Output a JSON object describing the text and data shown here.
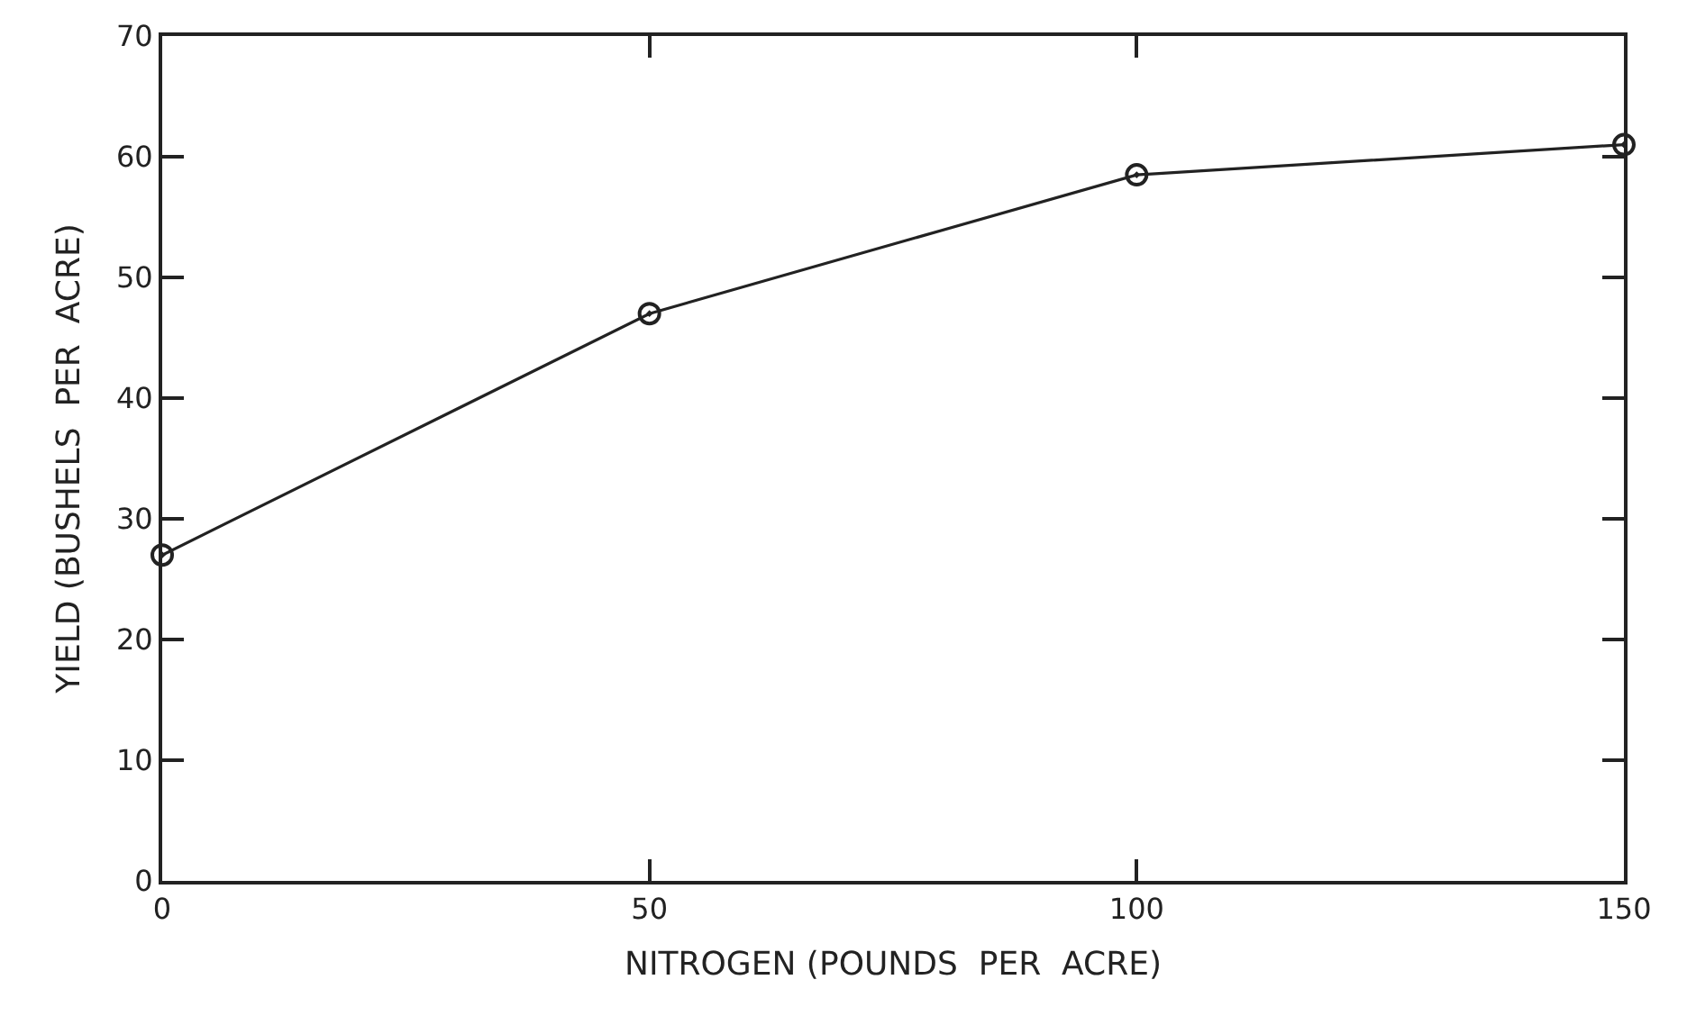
{
  "chart_data": {
    "type": "line",
    "xlabel": "NITROGEN (POUNDS  PER  ACRE)",
    "ylabel": "YIELD (BUSHELS  PER  ACRE)",
    "x": [
      0,
      50,
      100,
      150
    ],
    "series": [
      {
        "color": "#222222",
        "values": [
          27,
          47,
          58.5,
          61
        ]
      }
    ],
    "xlim": [
      0,
      150
    ],
    "xticks": [
      0,
      50,
      100,
      150
    ],
    "ylim": [
      0,
      70
    ],
    "yticks": [
      0,
      10,
      20,
      30,
      40,
      50,
      60,
      70
    ],
    "marker": "circle",
    "line_style": "solid"
  }
}
